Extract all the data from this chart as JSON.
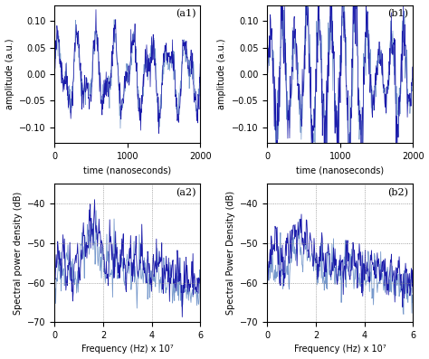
{
  "fig_width": 4.74,
  "fig_height": 3.97,
  "dpi": 100,
  "background_color": "#ffffff",
  "line_color_dark": "#1a1aaa",
  "line_color_light": "#7799cc",
  "subplot_labels": [
    "(a1)",
    "(b1)",
    "(a2)",
    "(b2)"
  ],
  "time_xlim": [
    0,
    2000
  ],
  "time_xticks": [
    0,
    1000,
    2000
  ],
  "time_ylim": [
    -0.13,
    0.13
  ],
  "time_yticks": [
    -0.1,
    -0.05,
    0,
    0.05,
    0.1
  ],
  "time_xlabel": "time (nanoseconds)",
  "time_ylabel": "amplitude (a.u.)",
  "freq_xlim": [
    0,
    6
  ],
  "freq_xticks": [
    0,
    2,
    4,
    6
  ],
  "freq_ylim": [
    -70,
    -35
  ],
  "freq_yticks": [
    -70,
    -60,
    -50,
    -40
  ],
  "freq_xlabel": "Frequency (Hz) x 10⁷",
  "freq_ylabel_a2": "Spectral power density (dB)",
  "freq_ylabel_b2": "Spectral Power Density (dB)",
  "dotted_vlines": [
    2.0,
    4.0
  ],
  "dotted_hlines_freq": [
    -40,
    -50,
    -60
  ],
  "n_time_points": 400,
  "n_freq_points": 300,
  "random_seed_a1_dark": 42,
  "random_seed_a1_light": 99,
  "random_seed_b1_dark": 7,
  "random_seed_b1_light": 15,
  "random_seed_a2_dark": 42,
  "random_seed_a2_light": 55,
  "random_seed_b2_dark": 7,
  "random_seed_b2_light": 88
}
